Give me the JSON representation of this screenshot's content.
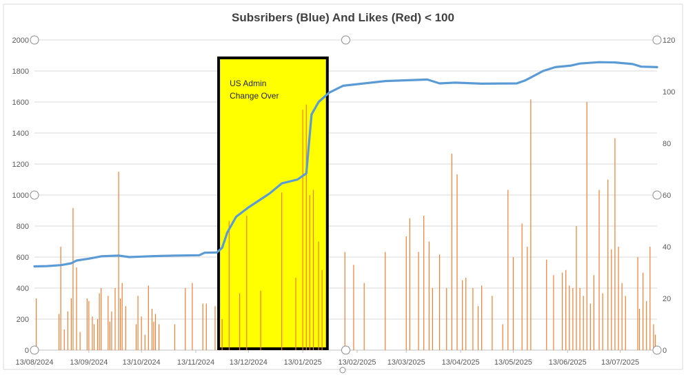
{
  "chart_data": {
    "type": "line",
    "title": "Subsribers (Blue) And Likes (Red) < 100",
    "x_axis": {
      "ticks": [
        "13/08/2024",
        "13/09/2024",
        "13/10/2024",
        "13/11/2024",
        "13/12/2024",
        "13/01/2025",
        "13/02/2025",
        "13/03/2025",
        "13/04/2025",
        "13/05/2025",
        "13/06/2025",
        "13/07/2025"
      ],
      "range": [
        "2024-08-13",
        "2025-08-03"
      ]
    },
    "y_left": {
      "ticks": [
        "0",
        "200",
        "400",
        "600",
        "800",
        "1000",
        "1200",
        "1400",
        "1600",
        "1800",
        "2000"
      ],
      "range": [
        0,
        2000
      ]
    },
    "y_right": {
      "ticks": [
        "0",
        "20",
        "40",
        "60",
        "80",
        "100",
        "120"
      ],
      "range": [
        0,
        120
      ]
    },
    "grid": "horizontal",
    "colors": {
      "subscribers": "#5b9bd5",
      "likes": "#ed7d31",
      "highlight": "#ffff00",
      "border": "#000000"
    },
    "annotation": {
      "text_line1": "US Admin",
      "text_line2": "Change Over",
      "x_start": "2024-11-26",
      "x_end": "2025-01-27"
    },
    "series": [
      {
        "axis": "left",
        "points": [
          [
            "2024-08-13",
            540
          ],
          [
            "2024-08-20",
            542
          ],
          [
            "2024-08-28",
            548
          ],
          [
            "2024-09-03",
            560
          ],
          [
            "2024-09-06",
            578
          ],
          [
            "2024-09-13",
            590
          ],
          [
            "2024-09-20",
            605
          ],
          [
            "2024-09-30",
            610
          ],
          [
            "2024-10-06",
            600
          ],
          [
            "2024-10-13",
            603
          ],
          [
            "2024-10-20",
            606
          ],
          [
            "2024-11-01",
            610
          ],
          [
            "2024-11-15",
            612
          ],
          [
            "2024-11-18",
            628
          ],
          [
            "2024-11-25",
            630
          ],
          [
            "2024-11-28",
            660
          ],
          [
            "2024-12-01",
            760
          ],
          [
            "2024-12-06",
            860
          ],
          [
            "2024-12-13",
            920
          ],
          [
            "2024-12-25",
            1010
          ],
          [
            "2025-01-01",
            1075
          ],
          [
            "2025-01-10",
            1100
          ],
          [
            "2025-01-15",
            1140
          ],
          [
            "2025-01-18",
            1520
          ],
          [
            "2025-01-22",
            1600
          ],
          [
            "2025-01-28",
            1660
          ],
          [
            "2025-02-05",
            1705
          ],
          [
            "2025-03-01",
            1735
          ],
          [
            "2025-03-25",
            1745
          ],
          [
            "2025-04-01",
            1720
          ],
          [
            "2025-04-10",
            1725
          ],
          [
            "2025-04-25",
            1718
          ],
          [
            "2025-05-15",
            1720
          ],
          [
            "2025-05-20",
            1740
          ],
          [
            "2025-05-30",
            1800
          ],
          [
            "2025-06-06",
            1825
          ],
          [
            "2025-06-15",
            1835
          ],
          [
            "2025-06-20",
            1848
          ],
          [
            "2025-07-01",
            1857
          ],
          [
            "2025-07-10",
            1855
          ],
          [
            "2025-07-20",
            1845
          ],
          [
            "2025-07-25",
            1828
          ],
          [
            "2025-08-03",
            1825
          ]
        ]
      },
      {
        "axis": "right",
        "style": "vertical-lines",
        "points": [
          [
            "2024-08-14",
            20
          ],
          [
            "2024-08-27",
            14
          ],
          [
            "2024-08-28",
            40
          ],
          [
            "2024-08-30",
            8
          ],
          [
            "2024-09-01",
            15
          ],
          [
            "2024-09-03",
            20
          ],
          [
            "2024-09-04",
            55
          ],
          [
            "2024-09-06",
            32
          ],
          [
            "2024-09-08",
            7
          ],
          [
            "2024-09-12",
            20
          ],
          [
            "2024-09-13",
            19
          ],
          [
            "2024-09-15",
            13
          ],
          [
            "2024-09-16",
            10
          ],
          [
            "2024-09-18",
            12
          ],
          [
            "2024-09-19",
            22
          ],
          [
            "2024-09-20",
            24
          ],
          [
            "2024-09-24",
            21
          ],
          [
            "2024-09-25",
            11
          ],
          [
            "2024-09-26",
            15
          ],
          [
            "2024-09-28",
            24
          ],
          [
            "2024-09-30",
            69
          ],
          [
            "2024-10-01",
            20
          ],
          [
            "2024-10-02",
            26
          ],
          [
            "2024-10-04",
            17
          ],
          [
            "2024-10-10",
            10
          ],
          [
            "2024-10-11",
            21
          ],
          [
            "2024-10-13",
            13
          ],
          [
            "2024-10-15",
            6
          ],
          [
            "2024-10-17",
            25
          ],
          [
            "2024-10-19",
            16
          ],
          [
            "2024-10-20",
            11
          ],
          [
            "2024-10-21",
            14
          ],
          [
            "2024-10-23",
            10
          ],
          [
            "2024-11-01",
            10
          ],
          [
            "2024-11-07",
            24
          ],
          [
            "2024-11-11",
            26
          ],
          [
            "2024-11-17",
            18
          ],
          [
            "2024-11-19",
            18
          ],
          [
            "2024-11-24",
            17
          ],
          [
            "2024-11-28",
            12
          ],
          [
            "2024-12-02",
            50
          ],
          [
            "2024-12-08",
            22
          ],
          [
            "2024-12-12",
            52
          ],
          [
            "2024-12-20",
            23
          ],
          [
            "2025-01-01",
            61
          ],
          [
            "2025-01-09",
            28
          ],
          [
            "2025-01-13",
            93
          ],
          [
            "2025-01-15",
            95
          ],
          [
            "2025-01-17",
            60
          ],
          [
            "2025-01-19",
            62
          ],
          [
            "2025-01-22",
            42
          ],
          [
            "2025-01-24",
            31
          ],
          [
            "2025-02-06",
            38
          ],
          [
            "2025-02-11",
            33
          ],
          [
            "2025-02-17",
            26
          ],
          [
            "2025-03-01",
            38
          ],
          [
            "2025-03-13",
            44
          ],
          [
            "2025-03-15",
            51
          ],
          [
            "2025-03-20",
            38
          ],
          [
            "2025-03-23",
            52
          ],
          [
            "2025-03-26",
            42
          ],
          [
            "2025-03-28",
            24
          ],
          [
            "2025-04-01",
            37
          ],
          [
            "2025-04-05",
            24
          ],
          [
            "2025-04-08",
            76
          ],
          [
            "2025-04-11",
            68
          ],
          [
            "2025-04-14",
            27
          ],
          [
            "2025-04-16",
            28
          ],
          [
            "2025-04-20",
            24
          ],
          [
            "2025-04-23",
            17
          ],
          [
            "2025-04-25",
            25
          ],
          [
            "2025-05-01",
            21
          ],
          [
            "2025-05-07",
            10
          ],
          [
            "2025-05-10",
            62
          ],
          [
            "2025-05-13",
            36
          ],
          [
            "2025-05-18",
            49
          ],
          [
            "2025-05-21",
            40
          ],
          [
            "2025-05-23",
            97
          ],
          [
            "2025-06-01",
            35
          ],
          [
            "2025-06-05",
            29
          ],
          [
            "2025-06-10",
            30
          ],
          [
            "2025-06-12",
            31
          ],
          [
            "2025-06-14",
            25
          ],
          [
            "2025-06-16",
            24
          ],
          [
            "2025-06-18",
            48
          ],
          [
            "2025-06-20",
            24
          ],
          [
            "2025-06-22",
            21
          ],
          [
            "2025-06-24",
            96
          ],
          [
            "2025-06-26",
            18
          ],
          [
            "2025-06-28",
            29
          ],
          [
            "2025-07-01",
            62
          ],
          [
            "2025-07-03",
            22
          ],
          [
            "2025-07-06",
            66
          ],
          [
            "2025-07-08",
            39
          ],
          [
            "2025-07-10",
            82
          ],
          [
            "2025-07-12",
            40
          ],
          [
            "2025-07-14",
            26
          ],
          [
            "2025-07-16",
            21
          ],
          [
            "2025-07-23",
            36
          ],
          [
            "2025-07-24",
            16
          ],
          [
            "2025-07-26",
            30
          ],
          [
            "2025-07-28",
            19
          ],
          [
            "2025-07-30",
            40
          ],
          [
            "2025-08-01",
            10
          ],
          [
            "2025-08-02",
            6
          ]
        ]
      }
    ]
  }
}
